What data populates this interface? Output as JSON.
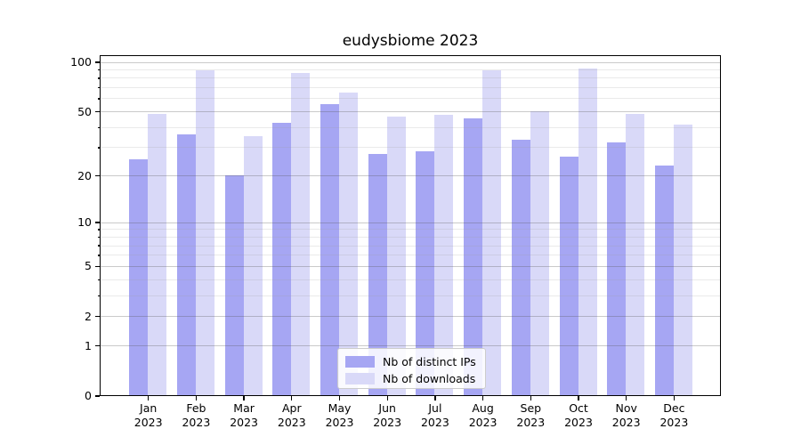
{
  "title": "eudysbiome 2023",
  "legend": {
    "items": [
      {
        "label": "Nb of distinct IPs",
        "color": "#a6a6f3"
      },
      {
        "label": "Nb of downloads",
        "color": "#d9d9f8"
      }
    ]
  },
  "y_axis": {
    "tick_labels": [
      "100",
      "50",
      "20",
      "10",
      "5",
      "2",
      "1",
      "0"
    ]
  },
  "chart_data": {
    "type": "bar",
    "title": "eudysbiome 2023",
    "categories": [
      "Jan",
      "Feb",
      "Mar",
      "Apr",
      "May",
      "Jun",
      "Jul",
      "Aug",
      "Sep",
      "Oct",
      "Nov",
      "Dec"
    ],
    "category_year": "2023",
    "series": [
      {
        "name": "Nb of distinct IPs",
        "color": "#a6a6f3",
        "values": [
          25,
          36,
          20,
          42,
          55,
          27,
          28,
          45,
          33,
          26,
          32,
          23
        ]
      },
      {
        "name": "Nb of downloads",
        "color": "#d9d9f8",
        "values": [
          48,
          88,
          35,
          85,
          65,
          46,
          47,
          88,
          50,
          91,
          48,
          41
        ]
      }
    ],
    "xlabel": "",
    "ylabel": "",
    "ylim": [
      0,
      100
    ],
    "y_scale": "log10(1+v)",
    "y_major_ticks": [
      0,
      1,
      2,
      5,
      10,
      20,
      50,
      100
    ],
    "y_minor_ticks": [
      3,
      4,
      6,
      7,
      8,
      9,
      30,
      40,
      60,
      70,
      80,
      90
    ],
    "grid": true,
    "legend_position": "bottom-center"
  }
}
